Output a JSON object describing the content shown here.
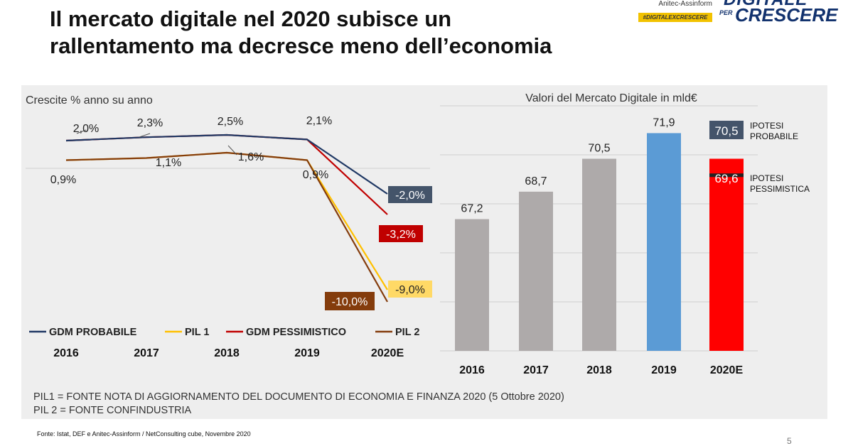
{
  "slide": {
    "title_line1": "Il mercato digitale nel 2020 subisce un",
    "title_line2": "rallentamento ma decresce meno dell’economia",
    "logo_brand": "Anitec-Assinform",
    "logo_tag": "#DIGITALEXCRESCERE",
    "logo_big1": "DIGITALE",
    "logo_per": "PER",
    "logo_big2": "CRESCERE",
    "note1": "PIL1 = FONTE NOTA DI AGGIORNAMENTO DEL DOCUMENTO DI ECONOMIA E FINANZA 2020 (5 Ottobre 2020)",
    "note2": "PIL 2 = FONTE CONFINDUSTRIA",
    "source": "Fonte: Istat, DEF e Anitec-Assinform / NetConsulting cube, Novembre 2020",
    "page_number": "5",
    "colors": {
      "gdm_probabile": "#1f3864",
      "pil1": "#ffc000",
      "gdm_pessimistico": "#c00000",
      "pil2": "#843c0c",
      "bar_grey": "#aeaaaa",
      "bar_2019": "#5b9bd5",
      "bar_2020": "#ff0000",
      "label_probabile_bg": "#44546a",
      "label_pil1_bg": "#ffd966"
    }
  },
  "chart_data": [
    {
      "type": "line",
      "title": "Crescite % anno su anno",
      "x": [
        "2016",
        "2017",
        "2018",
        "2019",
        "2020E"
      ],
      "series": [
        {
          "name": "GDM PROBABILE",
          "values": [
            2.0,
            2.3,
            2.5,
            2.1,
            -2.0
          ],
          "label": "-2,0%"
        },
        {
          "name": "PIL 1",
          "values": [
            0.9,
            1.1,
            1.6,
            0.9,
            -9.0
          ],
          "label": "-9,0%"
        },
        {
          "name": "GDM PESSIMISTICO",
          "values": [
            2.0,
            2.3,
            2.5,
            2.1,
            -3.2
          ],
          "label": "-3,2%"
        },
        {
          "name": "PIL 2",
          "values": [
            0.9,
            1.1,
            1.6,
            0.9,
            -10.0
          ],
          "label": "-10,0%"
        }
      ],
      "data_labels_upper": [
        "2,0%",
        "2,3%",
        "2,5%",
        "2,1%"
      ],
      "data_labels_lower": [
        "0,9%",
        "1,1%",
        "1,6%",
        "0,9%"
      ],
      "legend": [
        "GDM PROBABILE",
        "PIL 1",
        "GDM PESSIMISTICO",
        "PIL 2"
      ],
      "legend_position": "bottom",
      "ylim": [
        -11,
        3.5
      ]
    },
    {
      "type": "bar",
      "title": "Valori del Mercato Digitale in mld€",
      "categories": [
        "2016",
        "2017",
        "2018",
        "2019",
        "2020E"
      ],
      "values": [
        67.2,
        68.7,
        70.5,
        71.9,
        70.5
      ],
      "value_labels": [
        "67,2",
        "68,7",
        "70,5",
        "71,9",
        "70,5"
      ],
      "pessimistic_value": 69.6,
      "pessimistic_label": "69,6",
      "annotation_probable": "IPOTESI PROBABILE",
      "annotation_pessimistic": "IPOTESI PESSIMISTICA",
      "ylim": [
        60,
        73
      ],
      "grid": true
    }
  ]
}
